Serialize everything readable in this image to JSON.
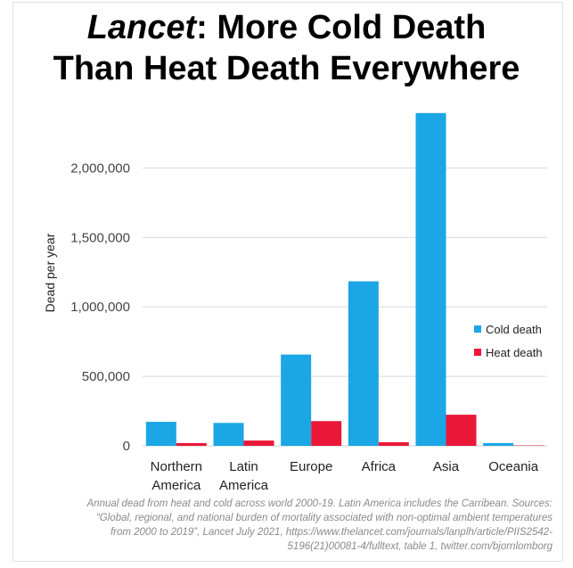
{
  "title": {
    "italic_part": "Lancet",
    "line1_rest": ": More Cold Death",
    "line2": "Than Heat Death Everywhere"
  },
  "caption": "Annual dead from heat and cold across world 2000-19. Latin America includes the Carribean. Sources:\n“Global, regional, and national burden of mortality associated with non-optimal ambient temperatures\nfrom 2000 to 2019”, Lancet July 2021, https://www.thelancet.com/journals/lanplh/article/PIIS2542-\n5196(21)00081-4/fulltext, table 1, twitter.com/bjornlomborg",
  "chart_data": {
    "type": "bar",
    "categories": [
      "Northern\nAmerica",
      "Latin\nAmerica",
      "Europe",
      "Africa",
      "Asia",
      "Oceania"
    ],
    "series": [
      {
        "name": "Cold death",
        "color": "#1ba6e6",
        "values": [
          173000,
          165000,
          657000,
          1184000,
          2395000,
          20000
        ]
      },
      {
        "name": "Heat death",
        "color": "#ea1738",
        "values": [
          20000,
          38000,
          178000,
          26000,
          224000,
          3000
        ]
      }
    ],
    "ylabel": "Dead per year",
    "ylim": [
      0,
      2400000
    ],
    "yticks": [
      0,
      500000,
      1000000,
      1500000,
      2000000
    ],
    "ytick_labels": [
      "0",
      "500,000",
      "1,000,000",
      "1,500,000",
      "2,000,000"
    ],
    "grid": true,
    "legend": "right"
  }
}
